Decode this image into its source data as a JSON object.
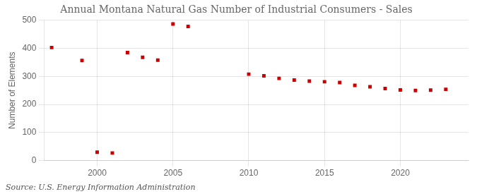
{
  "chart_data": {
    "type": "scatter",
    "title": "Annual Montana Natural Gas Number of Industrial Consumers - Sales",
    "y_label": "Number of Elements",
    "annotations": [
      "Source: U.S. Energy Information Administration"
    ],
    "x": [
      1997,
      1999,
      2000,
      2001,
      2002,
      2003,
      2004,
      2005,
      2006,
      2010,
      2011,
      2012,
      2013,
      2014,
      2015,
      2016,
      2017,
      2018,
      2019,
      2020,
      2021,
      2022,
      2023
    ],
    "values": [
      403,
      357,
      30,
      27,
      385,
      368,
      358,
      487,
      478,
      308,
      302,
      293,
      287,
      283,
      281,
      278,
      268,
      263,
      257,
      252,
      250,
      251,
      254
    ],
    "color": "#cc0000",
    "marker": "square",
    "xlim": [
      1996.5,
      2024.5
    ],
    "xticks": [
      2000,
      2005,
      2010,
      2015,
      2020
    ],
    "ylim": [
      0,
      500
    ],
    "yticks": [
      0,
      100,
      200,
      300,
      400,
      500
    ],
    "grid": true
  }
}
